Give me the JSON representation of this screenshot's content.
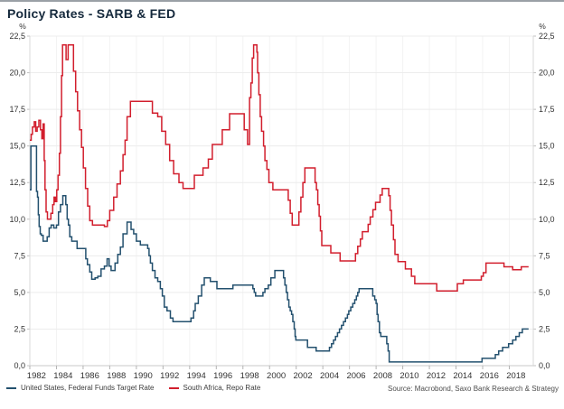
{
  "header": {
    "title": "Policy Rates - SARB & FED"
  },
  "footer": {
    "source": "Source: Macrobond, Saxo Bank Research & Strategy"
  },
  "colors": {
    "fed_line": "#23506e",
    "repo_line": "#d21e2d",
    "title_text": "#15293c",
    "grid": "#ececec",
    "axis_text": "#333333"
  },
  "chart_data": {
    "type": "line",
    "title": "Policy Rates - SARB & FED",
    "y_unit": "%",
    "ylim": [
      0,
      22.5
    ],
    "y_tick_step": 2.5,
    "xlim": [
      1982,
      2019.8
    ],
    "x_ticks": [
      1982,
      1984,
      1986,
      1988,
      1990,
      1992,
      1994,
      1996,
      1998,
      2000,
      2002,
      2004,
      2006,
      2008,
      2010,
      2012,
      2014,
      2016,
      2018
    ],
    "grid": true,
    "legend_position": "bottom-left",
    "series": [
      {
        "name": "United States, Federal Funds Target Rate",
        "color": "#23506e",
        "step": true,
        "points": [
          [
            1982.0,
            12.0
          ],
          [
            1982.08,
            15.0
          ],
          [
            1982.5,
            11.9
          ],
          [
            1982.58,
            11.5
          ],
          [
            1982.64,
            10.3
          ],
          [
            1982.7,
            9.5
          ],
          [
            1982.78,
            9.0
          ],
          [
            1982.86,
            8.9
          ],
          [
            1983.0,
            8.5
          ],
          [
            1983.3,
            8.8
          ],
          [
            1983.45,
            9.4
          ],
          [
            1983.6,
            9.6
          ],
          [
            1983.8,
            9.4
          ],
          [
            1984.0,
            9.6
          ],
          [
            1984.15,
            10.5
          ],
          [
            1984.3,
            11.0
          ],
          [
            1984.48,
            11.6
          ],
          [
            1984.7,
            11.0
          ],
          [
            1984.8,
            10.0
          ],
          [
            1984.9,
            9.6
          ],
          [
            1985.0,
            8.8
          ],
          [
            1985.15,
            8.5
          ],
          [
            1985.55,
            8.0
          ],
          [
            1986.2,
            7.3
          ],
          [
            1986.32,
            6.9
          ],
          [
            1986.5,
            6.4
          ],
          [
            1986.65,
            5.9
          ],
          [
            1986.9,
            6.0
          ],
          [
            1987.1,
            6.1
          ],
          [
            1987.35,
            6.6
          ],
          [
            1987.6,
            6.8
          ],
          [
            1987.8,
            7.3
          ],
          [
            1987.95,
            6.8
          ],
          [
            1988.1,
            6.5
          ],
          [
            1988.4,
            7.0
          ],
          [
            1988.6,
            7.6
          ],
          [
            1988.8,
            8.1
          ],
          [
            1989.0,
            9.0
          ],
          [
            1989.3,
            9.8
          ],
          [
            1989.6,
            9.3
          ],
          [
            1989.8,
            9.0
          ],
          [
            1990.0,
            8.5
          ],
          [
            1990.3,
            8.25
          ],
          [
            1990.85,
            8.0
          ],
          [
            1990.95,
            7.5
          ],
          [
            1991.05,
            7.0
          ],
          [
            1991.2,
            6.5
          ],
          [
            1991.4,
            6.0
          ],
          [
            1991.6,
            5.75
          ],
          [
            1991.8,
            5.25
          ],
          [
            1991.95,
            4.75
          ],
          [
            1992.1,
            4.0
          ],
          [
            1992.3,
            3.75
          ],
          [
            1992.55,
            3.25
          ],
          [
            1992.75,
            3.0
          ],
          [
            1994.1,
            3.25
          ],
          [
            1994.3,
            3.75
          ],
          [
            1994.42,
            4.25
          ],
          [
            1994.65,
            4.75
          ],
          [
            1994.9,
            5.5
          ],
          [
            1995.1,
            6.0
          ],
          [
            1995.55,
            5.75
          ],
          [
            1996.05,
            5.25
          ],
          [
            1997.25,
            5.5
          ],
          [
            1998.75,
            5.25
          ],
          [
            1998.85,
            5.0
          ],
          [
            1998.95,
            4.75
          ],
          [
            1999.5,
            5.0
          ],
          [
            1999.65,
            5.25
          ],
          [
            1999.9,
            5.5
          ],
          [
            2000.1,
            6.0
          ],
          [
            2000.4,
            6.5
          ],
          [
            2001.05,
            6.0
          ],
          [
            2001.15,
            5.5
          ],
          [
            2001.25,
            5.0
          ],
          [
            2001.35,
            4.5
          ],
          [
            2001.45,
            4.0
          ],
          [
            2001.55,
            3.75
          ],
          [
            2001.65,
            3.5
          ],
          [
            2001.75,
            3.0
          ],
          [
            2001.85,
            2.5
          ],
          [
            2001.92,
            2.0
          ],
          [
            2001.97,
            1.75
          ],
          [
            2002.85,
            1.25
          ],
          [
            2003.5,
            1.0
          ],
          [
            2004.5,
            1.25
          ],
          [
            2004.65,
            1.5
          ],
          [
            2004.8,
            1.75
          ],
          [
            2004.95,
            2.0
          ],
          [
            2005.1,
            2.25
          ],
          [
            2005.25,
            2.5
          ],
          [
            2005.4,
            2.75
          ],
          [
            2005.55,
            3.0
          ],
          [
            2005.7,
            3.25
          ],
          [
            2005.85,
            3.5
          ],
          [
            2005.95,
            3.75
          ],
          [
            2006.1,
            4.0
          ],
          [
            2006.25,
            4.25
          ],
          [
            2006.4,
            4.5
          ],
          [
            2006.52,
            4.75
          ],
          [
            2006.62,
            5.0
          ],
          [
            2006.72,
            5.25
          ],
          [
            2007.75,
            4.75
          ],
          [
            2007.9,
            4.5
          ],
          [
            2008.0,
            4.25
          ],
          [
            2008.07,
            3.5
          ],
          [
            2008.15,
            3.0
          ],
          [
            2008.25,
            2.25
          ],
          [
            2008.35,
            2.0
          ],
          [
            2008.8,
            1.5
          ],
          [
            2008.9,
            1.0
          ],
          [
            2008.98,
            0.25
          ],
          [
            2015.95,
            0.5
          ],
          [
            2016.95,
            0.75
          ],
          [
            2017.2,
            1.0
          ],
          [
            2017.5,
            1.25
          ],
          [
            2017.95,
            1.5
          ],
          [
            2018.25,
            1.75
          ],
          [
            2018.5,
            2.0
          ],
          [
            2018.75,
            2.25
          ],
          [
            2018.98,
            2.5
          ],
          [
            2019.45,
            2.5
          ]
        ]
      },
      {
        "name": "South Africa, Repo Rate",
        "color": "#d21e2d",
        "step": true,
        "points": [
          [
            1982.0,
            15.4
          ],
          [
            1982.1,
            15.8
          ],
          [
            1982.2,
            16.3
          ],
          [
            1982.33,
            16.65
          ],
          [
            1982.44,
            16.0
          ],
          [
            1982.55,
            16.3
          ],
          [
            1982.68,
            16.75
          ],
          [
            1982.8,
            16.1
          ],
          [
            1982.9,
            15.5
          ],
          [
            1983.0,
            16.5
          ],
          [
            1983.08,
            14.0
          ],
          [
            1983.14,
            12.0
          ],
          [
            1983.22,
            10.5
          ],
          [
            1983.32,
            10.0
          ],
          [
            1983.58,
            10.4
          ],
          [
            1983.72,
            11.0
          ],
          [
            1983.82,
            11.5
          ],
          [
            1983.92,
            11.2
          ],
          [
            1984.02,
            12.0
          ],
          [
            1984.12,
            13.0
          ],
          [
            1984.22,
            14.5
          ],
          [
            1984.3,
            17.0
          ],
          [
            1984.38,
            19.8
          ],
          [
            1984.46,
            21.9
          ],
          [
            1984.72,
            20.9
          ],
          [
            1984.88,
            21.9
          ],
          [
            1985.28,
            20.1
          ],
          [
            1985.44,
            18.7
          ],
          [
            1985.58,
            17.4
          ],
          [
            1985.74,
            16.1
          ],
          [
            1985.88,
            14.9
          ],
          [
            1986.02,
            13.5
          ],
          [
            1986.18,
            12.1
          ],
          [
            1986.34,
            10.9
          ],
          [
            1986.5,
            9.9
          ],
          [
            1986.7,
            9.6
          ],
          [
            1987.6,
            9.5
          ],
          [
            1987.82,
            9.9
          ],
          [
            1988.0,
            10.6
          ],
          [
            1988.3,
            11.5
          ],
          [
            1988.55,
            12.4
          ],
          [
            1988.8,
            13.3
          ],
          [
            1989.0,
            14.4
          ],
          [
            1989.15,
            15.4
          ],
          [
            1989.3,
            17.0
          ],
          [
            1989.55,
            18.05
          ],
          [
            1991.2,
            17.25
          ],
          [
            1991.6,
            17.0
          ],
          [
            1991.9,
            16.0
          ],
          [
            1992.2,
            15.1
          ],
          [
            1992.5,
            14.0
          ],
          [
            1992.8,
            13.1
          ],
          [
            1993.2,
            12.5
          ],
          [
            1993.5,
            12.1
          ],
          [
            1994.35,
            13.0
          ],
          [
            1995.0,
            13.5
          ],
          [
            1995.4,
            14.1
          ],
          [
            1995.7,
            15.1
          ],
          [
            1996.45,
            16.1
          ],
          [
            1997.0,
            17.2
          ],
          [
            1998.1,
            16.1
          ],
          [
            1998.35,
            15.1
          ],
          [
            1998.5,
            18.3
          ],
          [
            1998.6,
            19.3
          ],
          [
            1998.7,
            21.0
          ],
          [
            1998.8,
            21.9
          ],
          [
            1999.05,
            21.4
          ],
          [
            1999.1,
            20.0
          ],
          [
            1999.2,
            18.5
          ],
          [
            1999.3,
            17.0
          ],
          [
            1999.4,
            16.0
          ],
          [
            1999.55,
            15.0
          ],
          [
            1999.65,
            14.0
          ],
          [
            1999.8,
            13.4
          ],
          [
            1999.95,
            12.5
          ],
          [
            2000.25,
            12.0
          ],
          [
            2001.4,
            11.3
          ],
          [
            2001.55,
            10.4
          ],
          [
            2001.7,
            9.6
          ],
          [
            2002.2,
            10.5
          ],
          [
            2002.35,
            11.5
          ],
          [
            2002.5,
            12.5
          ],
          [
            2002.65,
            13.5
          ],
          [
            2003.42,
            12.5
          ],
          [
            2003.52,
            12.0
          ],
          [
            2003.62,
            11.0
          ],
          [
            2003.72,
            10.2
          ],
          [
            2003.82,
            9.2
          ],
          [
            2003.92,
            8.2
          ],
          [
            2004.6,
            7.7
          ],
          [
            2005.3,
            7.15
          ],
          [
            2006.45,
            7.65
          ],
          [
            2006.62,
            8.15
          ],
          [
            2006.82,
            8.65
          ],
          [
            2006.97,
            9.15
          ],
          [
            2007.4,
            9.65
          ],
          [
            2007.56,
            10.15
          ],
          [
            2007.76,
            10.65
          ],
          [
            2007.96,
            11.15
          ],
          [
            2008.3,
            11.65
          ],
          [
            2008.46,
            12.1
          ],
          [
            2008.95,
            11.6
          ],
          [
            2009.05,
            10.6
          ],
          [
            2009.15,
            9.6
          ],
          [
            2009.3,
            8.6
          ],
          [
            2009.42,
            7.6
          ],
          [
            2009.65,
            7.1
          ],
          [
            2010.2,
            6.6
          ],
          [
            2010.65,
            6.1
          ],
          [
            2010.9,
            5.6
          ],
          [
            2012.55,
            5.1
          ],
          [
            2014.1,
            5.6
          ],
          [
            2014.55,
            5.85
          ],
          [
            2015.9,
            6.1
          ],
          [
            2016.05,
            6.35
          ],
          [
            2016.25,
            7.0
          ],
          [
            2017.6,
            6.75
          ],
          [
            2018.25,
            6.55
          ],
          [
            2018.9,
            6.75
          ],
          [
            2019.45,
            6.75
          ]
        ]
      }
    ]
  }
}
